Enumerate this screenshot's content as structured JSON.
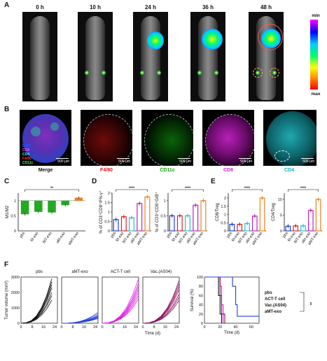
{
  "panels": {
    "A": "A",
    "B": "B",
    "C": "C",
    "D": "D",
    "E": "E",
    "F": "F"
  },
  "panel_a": {
    "timepoints": [
      "0 h",
      "10 h",
      "24 h",
      "36 h",
      "48 h"
    ],
    "colorbar": {
      "min": "min",
      "max": "max",
      "colors": [
        "#ff00ff",
        "#0000ff",
        "#00ccff",
        "#00ff66",
        "#ffff00",
        "#ff9900",
        "#ff0000"
      ]
    }
  },
  "panel_b": {
    "images": [
      {
        "label": "Merge",
        "color": "#111111"
      },
      {
        "label": "F4/80",
        "color": "#e01010"
      },
      {
        "label": "CD11c",
        "color": "#12a012"
      },
      {
        "label": "CD8",
        "color": "#d020d0"
      },
      {
        "label": "CD4",
        "color": "#10b0c0"
      }
    ],
    "scale_bar": "500 μm",
    "merge_channels": [
      {
        "name": "DAPI",
        "color": "#3050ff"
      },
      {
        "name": "CD8",
        "color": "#ff40ff"
      },
      {
        "name": "CD4",
        "color": "#40ffff"
      },
      {
        "name": "F4/80",
        "color": "#ff3030"
      },
      {
        "name": "CD11c",
        "color": "#40ff40"
      }
    ]
  },
  "chart_data": [
    {
      "panel": "C",
      "type": "bar",
      "ylabel": "M1/M2",
      "categories": [
        "pbs",
        "M-exo",
        "MT-exo",
        "aM-exo",
        "aMT-exo"
      ],
      "values": [
        0.55,
        0.63,
        0.61,
        0.85,
        1.1
      ],
      "colors": [
        "#22aa22",
        "#22aa22",
        "#22aa22",
        "#22aa22",
        "#f08020"
      ],
      "yticks": [
        "1",
        "0.5",
        "0"
      ],
      "baseline": 1,
      "ylim": [
        0,
        1.25
      ],
      "significance": "**"
    },
    {
      "panel": "D1",
      "type": "bar",
      "ylabel": "% of CD3⁺CD8⁺IFN-γ⁺",
      "categories": [
        "pbs",
        "M-exo",
        "MT-exo",
        "aM-exo",
        "aMT-exo"
      ],
      "values": [
        0.6,
        0.75,
        0.7,
        1.45,
        1.8
      ],
      "colors": [
        "#2040e0",
        "#e02020",
        "#20c0e0",
        "#c020c0",
        "#f08020"
      ],
      "yticks": [
        "0",
        "0.5",
        "1",
        "1.5",
        "2"
      ],
      "ylim": [
        0,
        2
      ],
      "significance": "****"
    },
    {
      "panel": "D2",
      "type": "bar",
      "ylabel": "% of CD3⁺CD8⁺GrB⁺",
      "categories": [
        "pbs",
        "M-exo",
        "MT-exo",
        "aM-exo",
        "aMT-exo"
      ],
      "values": [
        0.5,
        0.5,
        0.5,
        0.85,
        1.0
      ],
      "colors": [
        "#2040e0",
        "#e02020",
        "#20c0e0",
        "#c020c0",
        "#f08020"
      ],
      "yticks": [
        "0",
        "0.5",
        "1"
      ],
      "ylim": [
        0,
        1.25
      ],
      "significance": "****"
    },
    {
      "panel": "E1",
      "type": "bar",
      "ylabel": "CD8/Treg",
      "categories": [
        "pbs",
        "M-exo",
        "MT-exo",
        "aM-exo",
        "aMT-exo"
      ],
      "values": [
        0.4,
        0.4,
        0.45,
        0.9,
        2.0
      ],
      "colors": [
        "#2040e0",
        "#e02020",
        "#20c0e0",
        "#c020c0",
        "#f08020"
      ],
      "yticks": [
        "0",
        "0.5",
        "1",
        "1.5",
        "2"
      ],
      "ylim": [
        0,
        2.3
      ],
      "significance": "****"
    },
    {
      "panel": "E2",
      "type": "bar",
      "ylabel": "CD4/Treg",
      "categories": [
        "pbs",
        "M-exo",
        "MT-exo",
        "aM-exo",
        "aMT-exo"
      ],
      "values": [
        1.5,
        1.6,
        1.6,
        6.5,
        10
      ],
      "colors": [
        "#2040e0",
        "#e02020",
        "#20c0e0",
        "#c020c0",
        "#f08020"
      ],
      "yticks": [
        "0",
        "5",
        "10"
      ],
      "ylim": [
        0,
        12
      ],
      "significance": "****"
    },
    {
      "panel": "F-growth",
      "type": "line",
      "ylabel": "Tumor volume (mm³)",
      "xlabel": "Time (d)",
      "xticks": [
        "0",
        "8",
        "16",
        "24"
      ],
      "yticks": [
        "0",
        "1000",
        "2000",
        "3000"
      ],
      "xlim": [
        0,
        26
      ],
      "ylim": [
        0,
        3000
      ],
      "groups": [
        {
          "title": "pbs",
          "color": "#111111",
          "end_x": 22,
          "end_values": [
            2900,
            2700,
            2500,
            2300,
            2000,
            1800,
            1500
          ]
        },
        {
          "title": "aMT-exo",
          "color": "#2040e0",
          "end_x": 26,
          "end_values": [
            700,
            600,
            500,
            450,
            400,
            350,
            300
          ]
        },
        {
          "title": "ACT-T cell",
          "color": "#e020e0",
          "end_x": 26,
          "end_values": [
            2900,
            2600,
            2400,
            2200,
            2000,
            1800,
            1600
          ]
        },
        {
          "title": "Vac.(AS04)",
          "color": "#901060",
          "end_x": 26,
          "end_values": [
            2800,
            2600,
            2400,
            2200,
            1900,
            1700,
            1500
          ]
        }
      ]
    },
    {
      "panel": "F-survival",
      "type": "line",
      "ylabel": "Survival (%)",
      "xlabel": "Time (d)",
      "xticks": [
        "0",
        "20",
        "40",
        "60"
      ],
      "yticks": [
        "0",
        "20",
        "40",
        "60",
        "80",
        "100"
      ],
      "xlim": [
        0,
        70
      ],
      "ylim": [
        0,
        100
      ],
      "series": [
        {
          "name": "pbs",
          "color": "#111111",
          "steps": [
            [
              0,
              100
            ],
            [
              18,
              100
            ],
            [
              18,
              60
            ],
            [
              20,
              60
            ],
            [
              20,
              20
            ],
            [
              22,
              20
            ],
            [
              22,
              0
            ]
          ]
        },
        {
          "name": "ACT-T cell",
          "color": "#e020e0",
          "steps": [
            [
              0,
              100
            ],
            [
              20,
              100
            ],
            [
              20,
              80
            ],
            [
              22,
              80
            ],
            [
              22,
              40
            ],
            [
              24,
              40
            ],
            [
              24,
              0
            ]
          ]
        },
        {
          "name": "Vac.(AS04)",
          "color": "#901060",
          "steps": [
            [
              0,
              100
            ],
            [
              20,
              100
            ],
            [
              20,
              60
            ],
            [
              22,
              60
            ],
            [
              22,
              20
            ],
            [
              26,
              20
            ],
            [
              26,
              0
            ]
          ]
        },
        {
          "name": "aMT-exo",
          "color": "#2040e0",
          "steps": [
            [
              0,
              100
            ],
            [
              36,
              100
            ],
            [
              36,
              80
            ],
            [
              40,
              80
            ],
            [
              40,
              40
            ],
            [
              42,
              40
            ],
            [
              42,
              15
            ],
            [
              70,
              15
            ]
          ]
        }
      ],
      "significance": "**"
    }
  ]
}
